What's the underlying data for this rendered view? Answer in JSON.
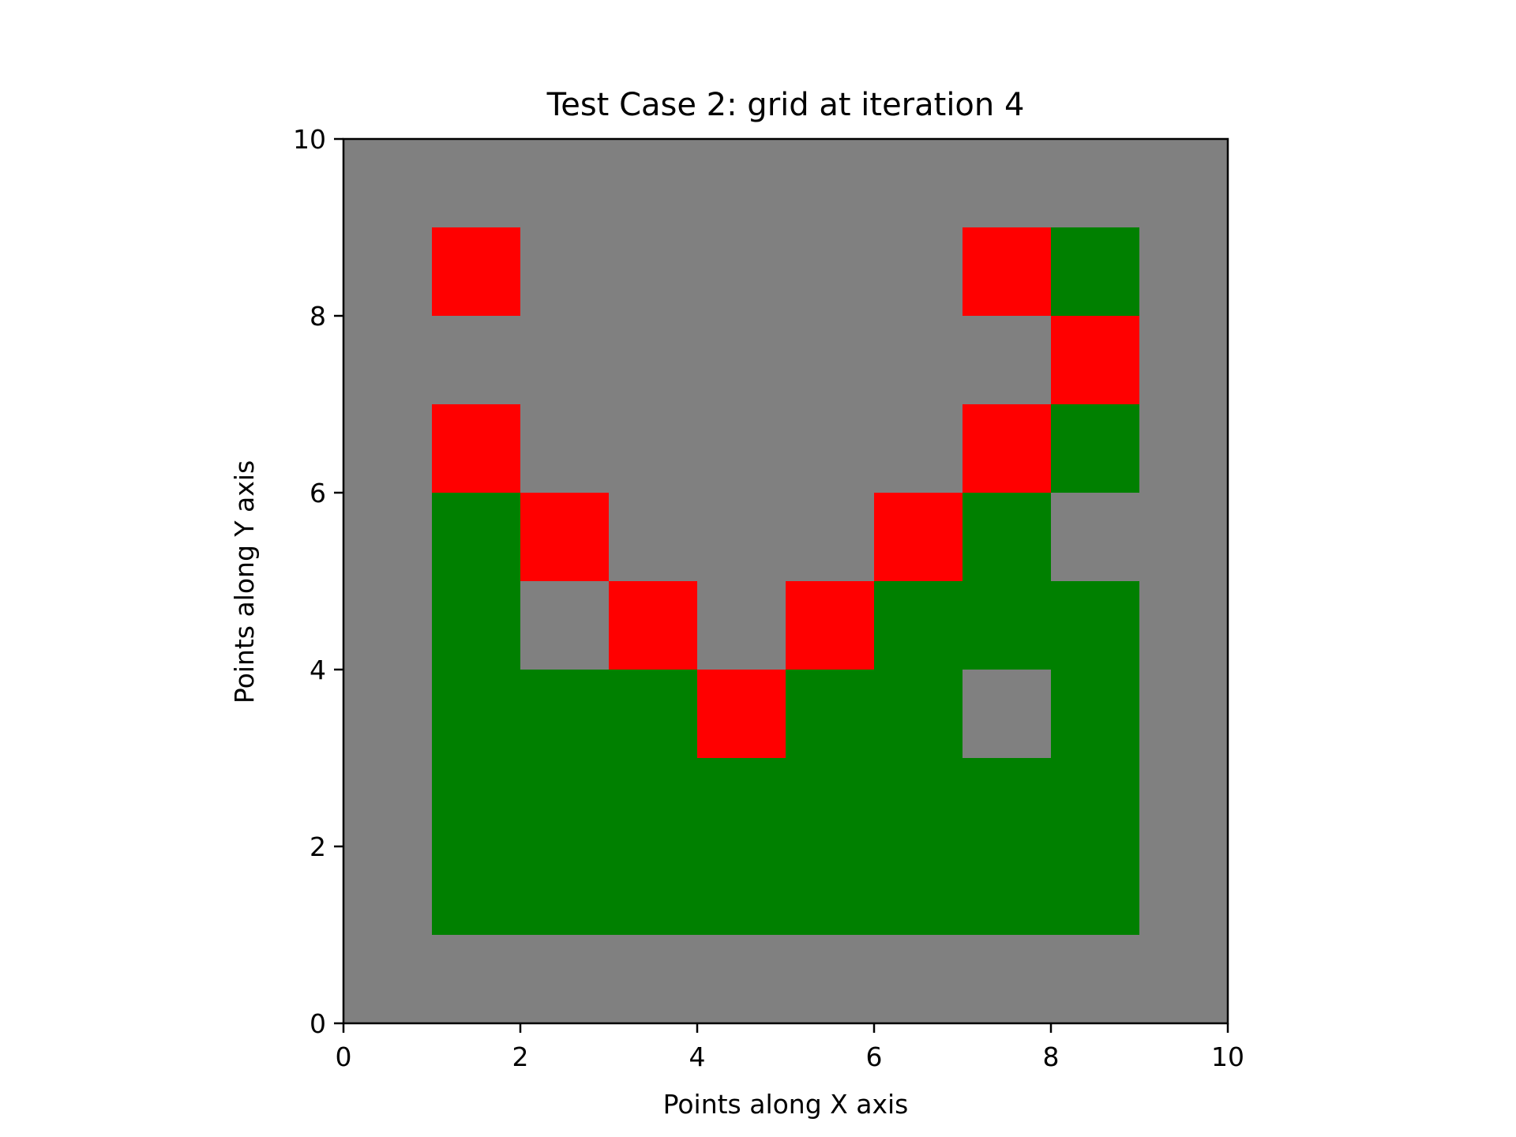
{
  "chart_data": {
    "type": "heatmap",
    "title": "Test Case 2: grid at iteration 4",
    "xlabel": "Points along X axis",
    "ylabel": "Points along Y axis",
    "xlim": [
      0,
      10
    ],
    "ylim": [
      0,
      10
    ],
    "x_ticks": [
      0,
      2,
      4,
      6,
      8,
      10
    ],
    "y_ticks": [
      0,
      2,
      4,
      6,
      8,
      10
    ],
    "grid": false,
    "colors": {
      "0": "#808080",
      "1": "#ff0000",
      "2": "#008000"
    },
    "cells_top_to_bottom": [
      [
        0,
        0,
        0,
        0,
        0,
        0,
        0,
        0,
        0,
        0
      ],
      [
        0,
        1,
        0,
        0,
        0,
        0,
        0,
        1,
        2,
        0
      ],
      [
        0,
        0,
        0,
        0,
        0,
        0,
        0,
        0,
        1,
        0
      ],
      [
        0,
        1,
        0,
        0,
        0,
        0,
        0,
        1,
        2,
        0
      ],
      [
        0,
        2,
        1,
        0,
        0,
        0,
        1,
        2,
        0,
        0
      ],
      [
        0,
        2,
        0,
        1,
        0,
        1,
        2,
        2,
        2,
        0
      ],
      [
        0,
        2,
        2,
        2,
        1,
        2,
        2,
        0,
        2,
        0
      ],
      [
        0,
        2,
        2,
        2,
        2,
        2,
        2,
        2,
        2,
        0
      ],
      [
        0,
        2,
        2,
        2,
        2,
        2,
        2,
        2,
        2,
        0
      ],
      [
        0,
        0,
        0,
        0,
        0,
        0,
        0,
        0,
        0,
        0
      ]
    ]
  }
}
